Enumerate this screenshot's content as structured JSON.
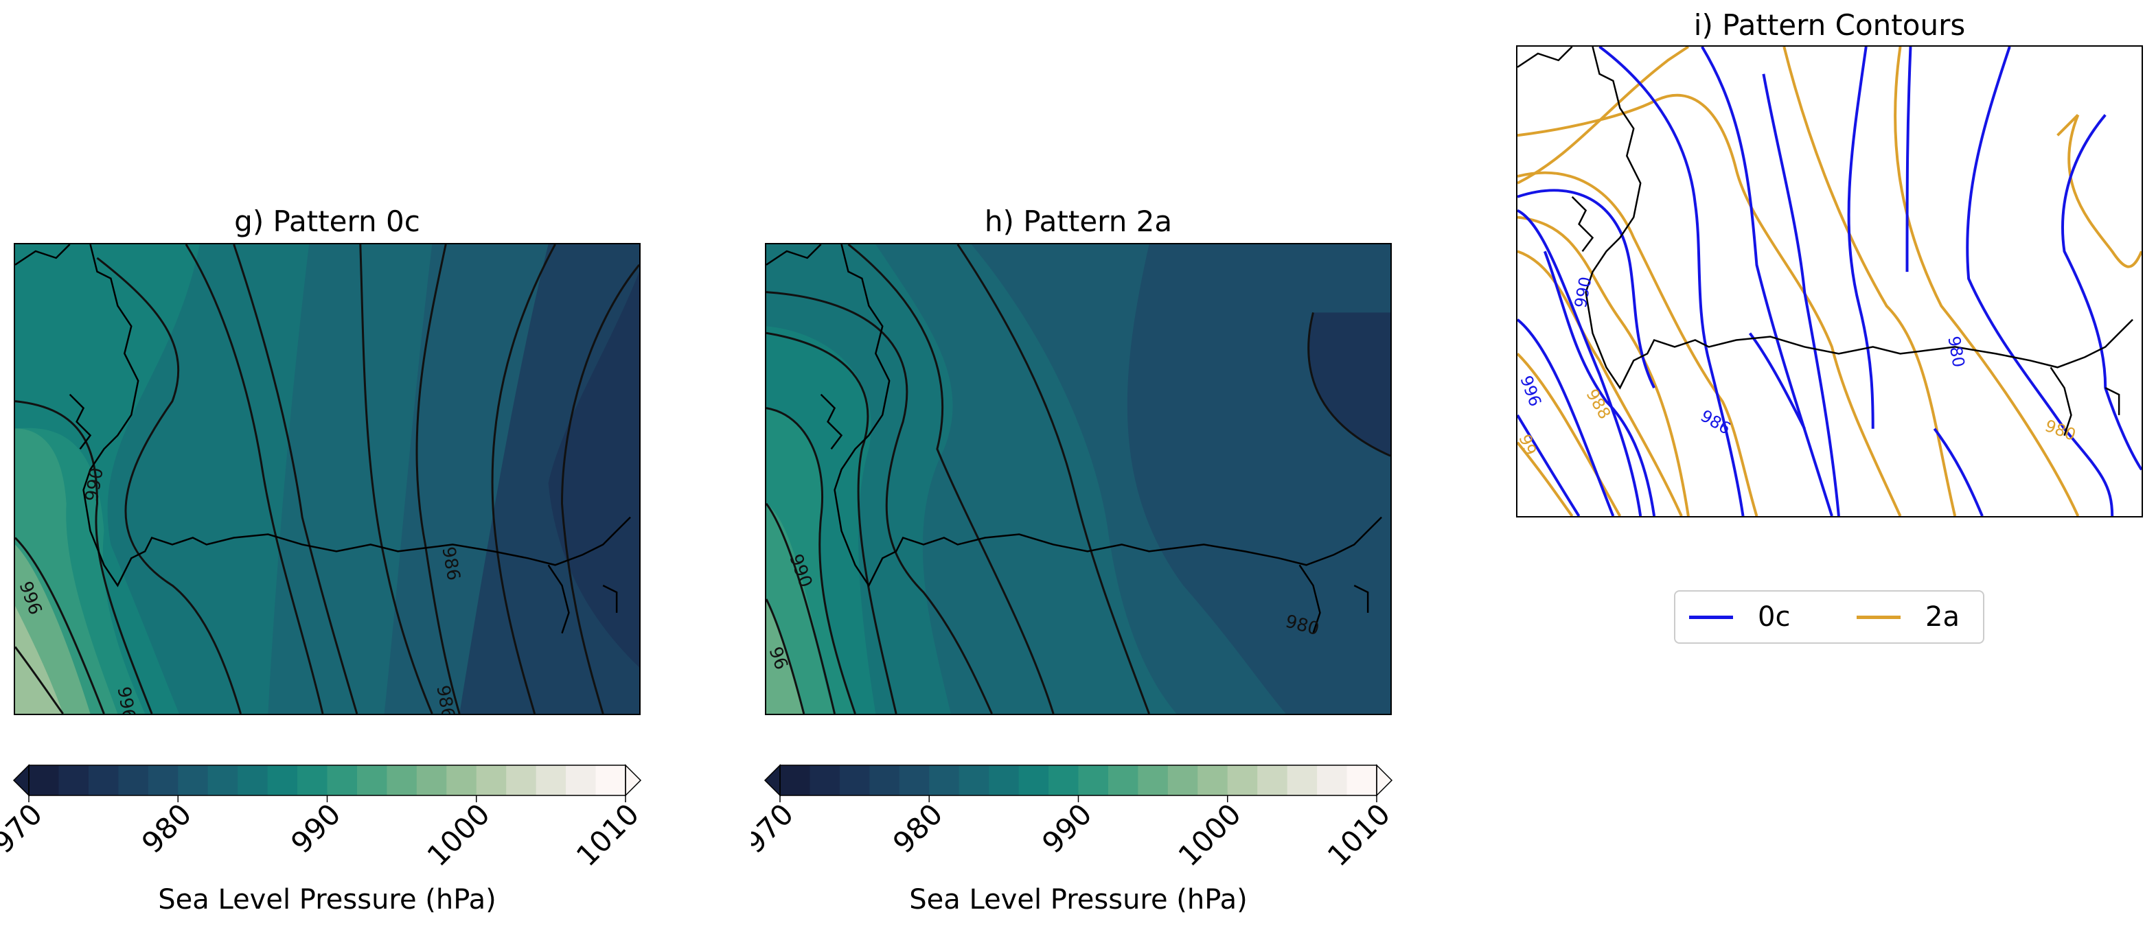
{
  "panels": [
    {
      "id": "g",
      "title": "g) Pattern 0c",
      "contour_labels": [
        "990",
        "996",
        "996",
        "986",
        "986"
      ]
    },
    {
      "id": "h",
      "title": "h) Pattern 2a",
      "contour_labels": [
        "990",
        "96",
        "980"
      ]
    },
    {
      "id": "i",
      "title": "i) Pattern Contours",
      "contour_labels_0c": [
        "990",
        "996",
        "986",
        "980"
      ],
      "contour_labels_2a": [
        "988",
        "980",
        "99"
      ]
    }
  ],
  "colorbar": {
    "label": "Sea Level Pressure (hPa)",
    "ticks": [
      "970",
      "980",
      "990",
      "1000",
      "1010"
    ],
    "vmin": 970,
    "vmax": 1010,
    "levels": 20,
    "extend": "both",
    "colors": [
      "#16203f",
      "#192a4c",
      "#1b3557",
      "#1c4160",
      "#1d4c68",
      "#1c5a6f",
      "#1a6774",
      "#177377",
      "#16807a",
      "#1f8c7c",
      "#32987e",
      "#4aa381",
      "#65ad86",
      "#80b68e",
      "#9bc19a",
      "#b5ccab",
      "#cdd8c1",
      "#e2e4d7",
      "#f2eeea",
      "#fdf7f5"
    ]
  },
  "legend": {
    "items": [
      {
        "label": "0c",
        "color": "#1414e6"
      },
      {
        "label": "2a",
        "color": "#dca12d"
      }
    ]
  }
}
